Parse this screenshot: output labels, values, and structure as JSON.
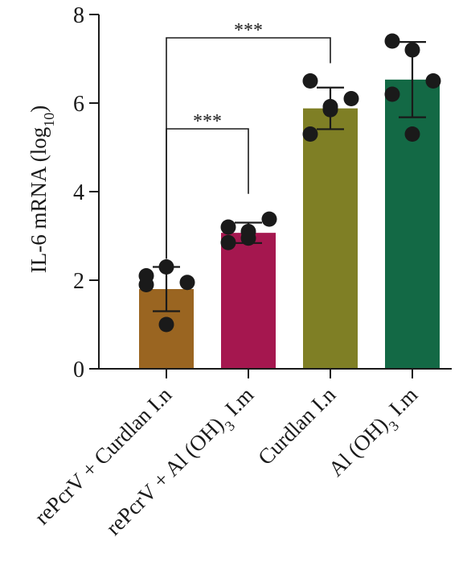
{
  "chart_data": {
    "type": "bar",
    "title": "",
    "xlabel": "",
    "ylabel": "IL-6 mRNA (log10)",
    "ylabel_parts": {
      "main": "IL-6 mRNA (log",
      "sub": "10",
      "close": ")"
    },
    "ylim": [
      0,
      8
    ],
    "yticks": [
      0,
      2,
      4,
      6,
      8
    ],
    "grid": false,
    "legend": "none",
    "categories": [
      "rePcrV + Curdlan I.n",
      "rePcrV + Al (OH)3 I.m",
      "Curdlan I.n",
      "Al (OH)3 I.m"
    ],
    "category_labels": [
      {
        "main": "rePcrV + Curdlan I.n",
        "pre": "",
        "sub": "",
        "post": ""
      },
      {
        "main": "",
        "pre": "rePcrV + Al (OH)",
        "sub": "3",
        "post": " I.m"
      },
      {
        "main": "Curdlan I.n",
        "pre": "",
        "sub": "",
        "post": ""
      },
      {
        "main": "",
        "pre": "Al (OH)",
        "sub": "3",
        "post": " I.m"
      }
    ],
    "values": [
      1.8,
      3.07,
      5.88,
      6.53
    ],
    "error": [
      0.5,
      0.23,
      0.47,
      0.85
    ],
    "points": [
      [
        2.1,
        2.3,
        1.95,
        1.9,
        1.0
      ],
      [
        3.2,
        3.1,
        3.38,
        2.85,
        2.95
      ],
      [
        6.5,
        5.92,
        6.1,
        5.3,
        5.85
      ],
      [
        7.4,
        7.2,
        6.5,
        6.2,
        5.3
      ]
    ],
    "colors": [
      "#9a6521",
      "#a5174f",
      "#7f7f25",
      "#136945"
    ],
    "point_color": "#1a1a1a",
    "significance": [
      {
        "from": 0,
        "to": 1,
        "label": "***"
      },
      {
        "from": 0,
        "to": 2,
        "label": "***"
      }
    ]
  }
}
